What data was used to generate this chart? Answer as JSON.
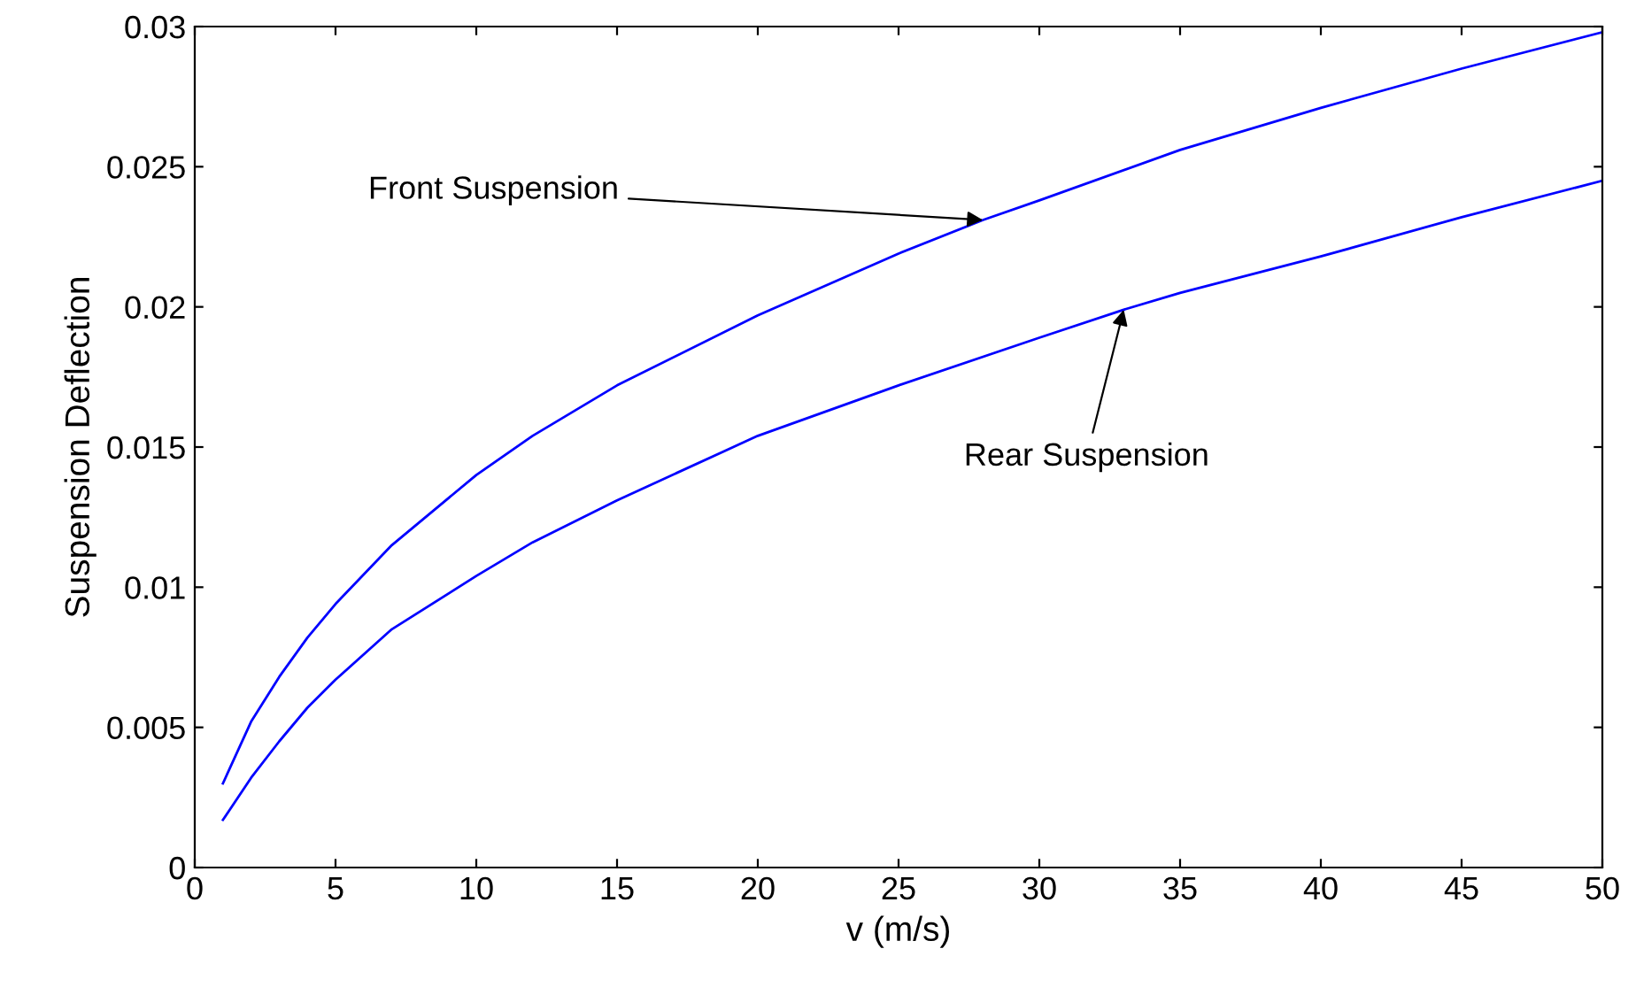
{
  "chart_data": {
    "type": "line",
    "xlabel": "v (m/s)",
    "ylabel": "Suspension Deflection",
    "xlim": [
      0,
      50
    ],
    "ylim": [
      0,
      0.03
    ],
    "xticks": [
      0,
      5,
      10,
      15,
      20,
      25,
      30,
      35,
      40,
      45,
      50
    ],
    "yticks": [
      0,
      0.005,
      0.01,
      0.015,
      0.02,
      0.025,
      0.03
    ],
    "grid": false,
    "marker": "none",
    "line_style": "solid",
    "series": [
      {
        "color": "#0000ff",
        "x": [
          1,
          2,
          3,
          4,
          5,
          7,
          10,
          12,
          15,
          20,
          25,
          28,
          30,
          35,
          40,
          45,
          50
        ],
        "values": [
          0.003,
          0.0052,
          0.0068,
          0.0082,
          0.0094,
          0.0115,
          0.014,
          0.0154,
          0.0172,
          0.0197,
          0.0219,
          0.0231,
          0.0238,
          0.0256,
          0.0271,
          0.0285,
          0.0298
        ]
      },
      {
        "color": "#0000ff",
        "x": [
          1,
          2,
          3,
          4,
          5,
          7,
          10,
          12,
          15,
          20,
          25,
          30,
          33,
          35,
          40,
          45,
          50
        ],
        "values": [
          0.0017,
          0.0032,
          0.0045,
          0.0057,
          0.0067,
          0.0085,
          0.0104,
          0.0116,
          0.0131,
          0.0154,
          0.0172,
          0.0189,
          0.0199,
          0.0205,
          0.0218,
          0.0232,
          0.0245
        ]
      }
    ],
    "annotations": [
      {
        "text": "Front Suspension",
        "x": 28,
        "y": 0.0231
      },
      {
        "text": "Rear Suspension",
        "x": 33,
        "y": 0.0199
      }
    ]
  }
}
